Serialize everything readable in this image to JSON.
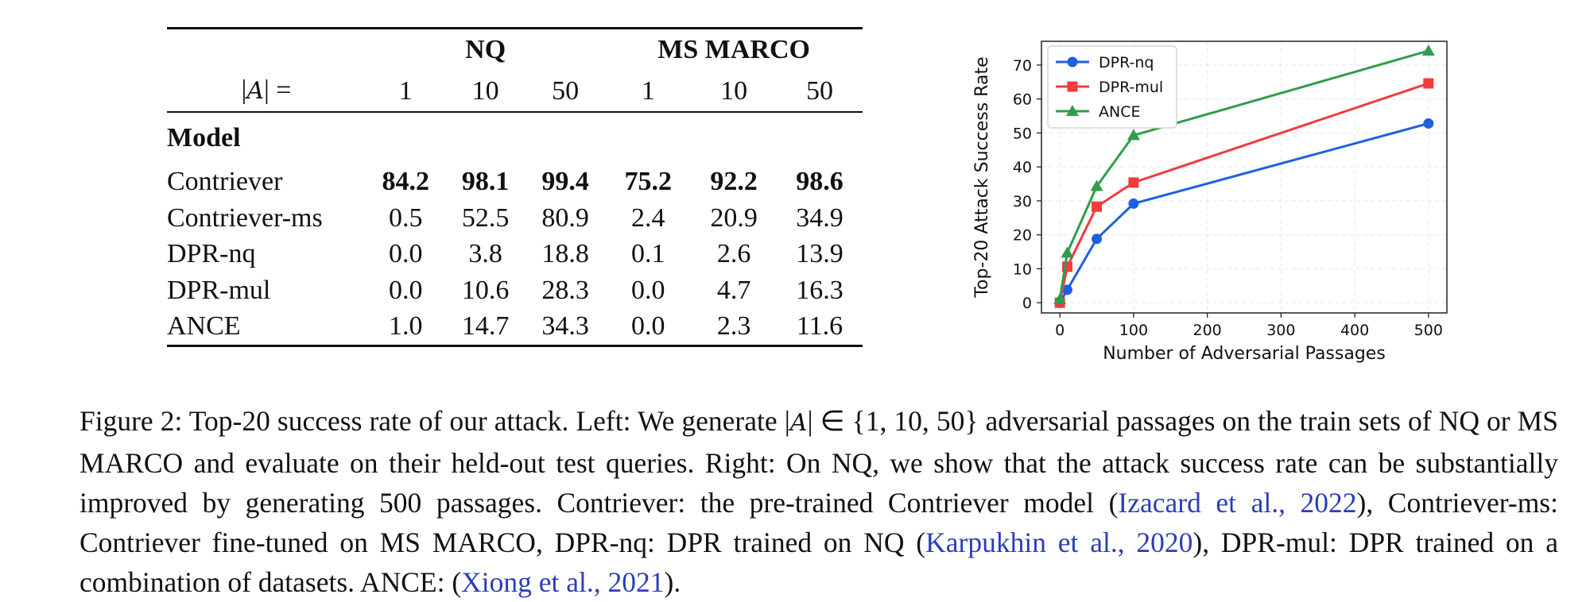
{
  "table": {
    "dataset_headers": [
      "NQ",
      "MS MARCO"
    ],
    "set_label_prefix": "|",
    "set_label_symbol": "A",
    "set_label_suffix": "| =",
    "set_sizes": [
      "1",
      "10",
      "50",
      "1",
      "10",
      "50"
    ],
    "model_header": "Model",
    "rows": [
      {
        "model": "Contriever",
        "values": [
          "84.2",
          "98.1",
          "99.4",
          "75.2",
          "92.2",
          "98.6"
        ],
        "bold": true
      },
      {
        "model": "Contriever-ms",
        "values": [
          "0.5",
          "52.5",
          "80.9",
          "2.4",
          "20.9",
          "34.9"
        ],
        "bold": false
      },
      {
        "model": "DPR-nq",
        "values": [
          "0.0",
          "3.8",
          "18.8",
          "0.1",
          "2.6",
          "13.9"
        ],
        "bold": false
      },
      {
        "model": "DPR-mul",
        "values": [
          "0.0",
          "10.6",
          "28.3",
          "0.0",
          "4.7",
          "16.3"
        ],
        "bold": false
      },
      {
        "model": "ANCE",
        "values": [
          "1.0",
          "14.7",
          "34.3",
          "0.0",
          "2.3",
          "11.6"
        ],
        "bold": false
      }
    ]
  },
  "chart_data": {
    "type": "line",
    "xlabel": "Number of Adversarial Passages",
    "ylabel": "Top-20 Attack Success Rate",
    "xlim": [
      -25,
      525
    ],
    "ylim": [
      -3,
      77
    ],
    "xticks": [
      0,
      100,
      200,
      300,
      400,
      500
    ],
    "yticks": [
      0,
      10,
      20,
      30,
      40,
      50,
      60,
      70
    ],
    "grid": true,
    "legend_position": "top-left",
    "x": [
      0,
      10,
      50,
      100,
      500
    ],
    "series": [
      {
        "name": "DPR-nq",
        "color": "#1f5fe0",
        "marker": "circle",
        "values": [
          0.0,
          3.8,
          18.8,
          29.2,
          52.8
        ]
      },
      {
        "name": "DPR-mul",
        "color": "#f03c3c",
        "marker": "square",
        "values": [
          0.0,
          10.6,
          28.3,
          35.4,
          64.6
        ]
      },
      {
        "name": "ANCE",
        "color": "#2e9e4a",
        "marker": "triangle",
        "values": [
          1.0,
          14.7,
          34.3,
          49.3,
          74.2
        ]
      }
    ]
  },
  "caption": {
    "fig_label": "Figure 2:",
    "part1": " Top-20 success rate of our attack. Left: We generate ",
    "set_expr_pre": "|",
    "set_expr_sym": "A",
    "set_expr_post": "| ∈ {1, 10, 50}",
    "part2": " adversarial passages on the train sets of NQ or MS MARCO and evaluate on their held-out test queries. Right: On NQ, we show that the attack success rate can be substantially improved by generating 500 passages. Contriever: the pre-trained Contriever model (",
    "cite1": "Izacard et al., 2022",
    "part3": "), Contriever-ms: Contriever fine-tuned on MS MARCO, DPR-nq: DPR trained on NQ (",
    "cite2": "Karpukhin et al., 2020",
    "part4": "), DPR-mul: DPR trained on a combination of datasets. ANCE: (",
    "cite3": "Xiong et al., 2021",
    "part5": ")."
  }
}
